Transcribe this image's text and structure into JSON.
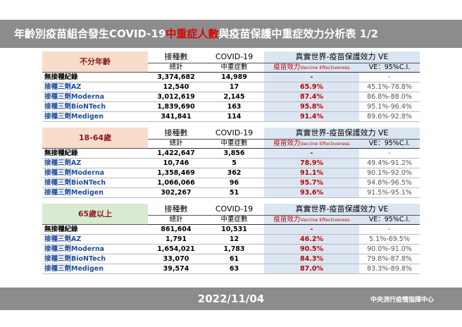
{
  "header": {
    "title_parts": [
      "年齡別疫苗組合發生COVID-19",
      "中重症人數",
      "與疫苗保護中重症效力分析表 1/2"
    ]
  },
  "columns": {
    "doses": "接種數",
    "doses_sub": "總計",
    "covid": "COVID-19",
    "covid_sub": "中重症數",
    "ve": "真實世界-疫苗保護效力 VE",
    "ve_sub": "疫苗效力",
    "ve_sub_en": "Vaccine Effectiveness",
    "ci_sub": "VE：95%C.I."
  },
  "groups": [
    {
      "label": "不分年齡",
      "rows": [
        [
          "無接種紀錄",
          "3,374,682",
          "14,989",
          "-",
          "-"
        ],
        [
          "接種三劑AZ",
          "12,540",
          "17",
          "65.9%",
          "45.1%-78.8%"
        ],
        [
          "接種三劑Moderna",
          "3,012,619",
          "2,145",
          "87.4%",
          "86.8%-88.0%"
        ],
        [
          "接種三劑BioNTech",
          "1,839,690",
          "163",
          "95.8%",
          "95.1%-96.4%"
        ],
        [
          "接種三劑Medigen",
          "341,841",
          "114",
          "91.4%",
          "89.6%-92.8%"
        ]
      ]
    },
    {
      "label": "18-64歲",
      "rows": [
        [
          "無接種紀錄",
          "1,422,647",
          "3,856",
          "-",
          "-"
        ],
        [
          "接種三劑AZ",
          "10,746",
          "5",
          "78.9%",
          "49.4%-91.2%"
        ],
        [
          "接種三劑Moderna",
          "1,358,469",
          "362",
          "91.1%",
          "90.1%-92.0%"
        ],
        [
          "接種三劑BioNTech",
          "1,066,066",
          "96",
          "95.7%",
          "94.8%-96.5%"
        ],
        [
          "接種三劑Medigen",
          "302,267",
          "51",
          "93.6%",
          "91.5%-95.1%"
        ]
      ]
    },
    {
      "label": "65歲以上",
      "rows": [
        [
          "無接種紀錄",
          "861,604",
          "10,531",
          "-",
          "-"
        ],
        [
          "接種三劑AZ",
          "1,791",
          "12",
          "46.2%",
          "5.1%-69.5%"
        ],
        [
          "接種三劑Moderna",
          "1,654,021",
          "1,783",
          "90.5%",
          "90.0%-91.0%"
        ],
        [
          "接種三劑BioNTech",
          "33,070",
          "61",
          "84.3%",
          "79.8%-87.8%"
        ],
        [
          "接種三劑Medigen",
          "39,574",
          "63",
          "87.0%",
          "83.3%-89.8%"
        ]
      ]
    }
  ],
  "footer": {
    "date": "2022/11/04",
    "org": "中央流行疫情指揮中心"
  }
}
